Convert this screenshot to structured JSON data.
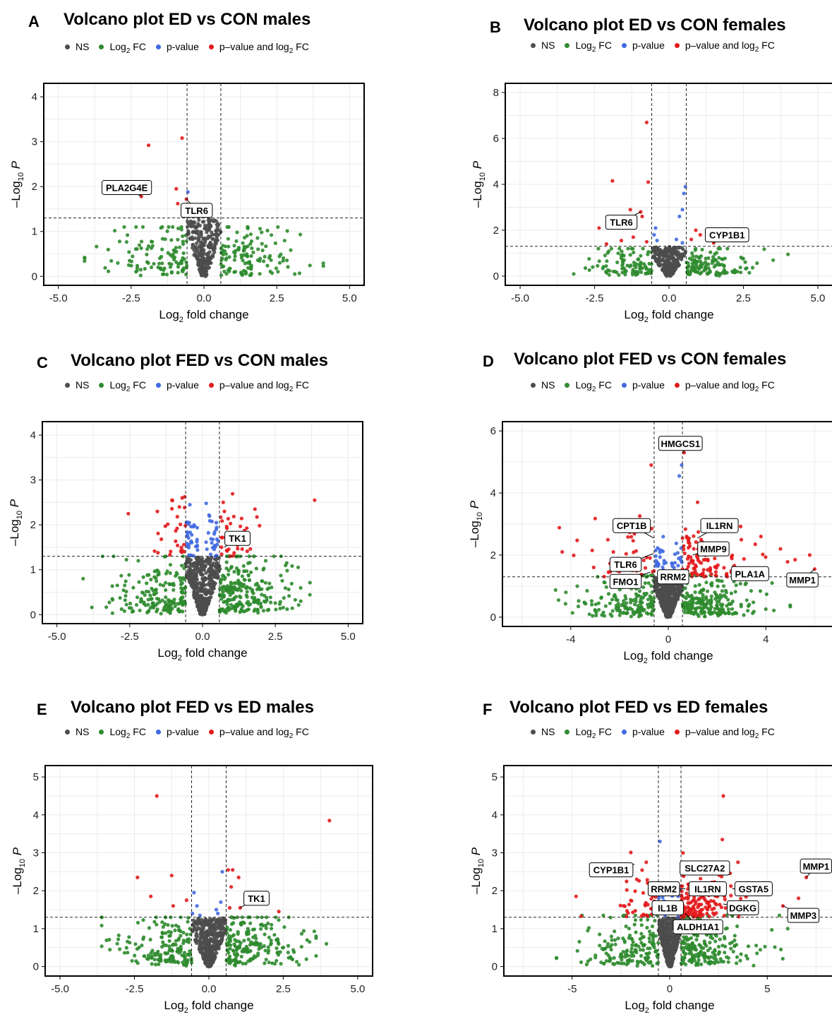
{
  "legend": {
    "ns": "NS",
    "log2fc": "Log",
    "log2fc_sub": "2",
    "log2fc_suffix": " FC",
    "pvalue": "p-value",
    "both": "p–value and log",
    "both_sub": "2",
    "both_suffix": " FC",
    "colors": {
      "ns": "#4d4d4d",
      "log2fc": "#2e8b2e",
      "pvalue": "#4169e1",
      "both": "#e31a1c"
    }
  },
  "axis_labels": {
    "x": "Log",
    "x_sub": "2",
    "x_suffix": " fold change",
    "y_prefix": "–Log",
    "y_sub": "10",
    "y_suffix": " P"
  },
  "chart_data": [
    {
      "letter": "A",
      "title": "Volcano plot ED vs CON males",
      "type": "scatter",
      "xlim": [
        -5.5,
        5.5
      ],
      "ylim": [
        -0.2,
        4.3
      ],
      "xticks": [
        -5.0,
        -2.5,
        0.0,
        2.5,
        5.0
      ],
      "xtick_labels": [
        "-5.0",
        "-2.5",
        "0.0",
        "2.5",
        "5.0"
      ],
      "yticks": [
        0,
        1,
        2,
        3,
        4
      ],
      "ytick_labels": [
        "0",
        "1",
        "2",
        "3",
        "4"
      ],
      "fc_cutoff": 0.58,
      "p_cutoff": 1.3,
      "cloud": {
        "ns_spread": 1.15,
        "fc_spread": 4.1,
        "fc_ymax": 1.1,
        "n_ns": 260,
        "n_fc": 240
      },
      "highlight_points": [
        {
          "x": -1.9,
          "y": 2.92,
          "cat": "both"
        },
        {
          "x": -0.75,
          "y": 3.08,
          "cat": "both"
        },
        {
          "x": -0.95,
          "y": 1.95,
          "cat": "both"
        },
        {
          "x": -0.9,
          "y": 1.62,
          "cat": "both"
        },
        {
          "x": -2.15,
          "y": 1.78,
          "cat": "both"
        },
        {
          "x": -0.6,
          "y": 1.72,
          "cat": "both"
        },
        {
          "x": -0.55,
          "y": 1.88,
          "cat": "pvalue"
        },
        {
          "x": -0.52,
          "y": 1.58,
          "cat": "pvalue"
        }
      ],
      "labels": [
        {
          "text": "PLA2G4E",
          "x": -2.15,
          "y": 1.78,
          "lx": -2.65,
          "ly": 1.98
        },
        {
          "text": "TLR6",
          "x": -0.6,
          "y": 1.72,
          "lx": -0.25,
          "ly": 1.47
        }
      ]
    },
    {
      "letter": "B",
      "title": "Volcano plot ED vs CON females",
      "type": "scatter",
      "xlim": [
        -5.5,
        5.5
      ],
      "ylim": [
        -0.4,
        8.4
      ],
      "xticks": [
        -5.0,
        -2.5,
        0.0,
        2.5,
        5.0
      ],
      "xtick_labels": [
        "-5.0",
        "-2.5",
        "0.0",
        "2.5",
        "5.0"
      ],
      "yticks": [
        0,
        2,
        4,
        6,
        8
      ],
      "ytick_labels": [
        "0",
        "2",
        "4",
        "6",
        "8"
      ],
      "fc_cutoff": 0.58,
      "p_cutoff": 1.3,
      "cloud": {
        "ns_spread": 1.3,
        "fc_spread": 3.2,
        "fc_ymax": 1.2,
        "n_ns": 280,
        "n_fc": 220
      },
      "highlight_points": [
        {
          "x": -0.75,
          "y": 6.7,
          "cat": "both"
        },
        {
          "x": -3.2,
          "y": 0.1,
          "cat": "log2fc"
        },
        {
          "x": -1.9,
          "y": 4.15,
          "cat": "both"
        },
        {
          "x": -0.7,
          "y": 4.1,
          "cat": "both"
        },
        {
          "x": -0.95,
          "y": 2.8,
          "cat": "both"
        },
        {
          "x": -1.3,
          "y": 2.9,
          "cat": "both"
        },
        {
          "x": -2.35,
          "y": 2.1,
          "cat": "both"
        },
        {
          "x": -0.9,
          "y": 2.6,
          "cat": "both"
        },
        {
          "x": -1.6,
          "y": 1.55,
          "cat": "both"
        },
        {
          "x": -1.2,
          "y": 1.7,
          "cat": "both"
        },
        {
          "x": -0.75,
          "y": 1.5,
          "cat": "both"
        },
        {
          "x": -2.1,
          "y": 1.4,
          "cat": "both"
        },
        {
          "x": 0.55,
          "y": 3.9,
          "cat": "pvalue"
        },
        {
          "x": 0.5,
          "y": 3.6,
          "cat": "pvalue"
        },
        {
          "x": 0.45,
          "y": 2.9,
          "cat": "pvalue"
        },
        {
          "x": 0.35,
          "y": 2.6,
          "cat": "pvalue"
        },
        {
          "x": -0.45,
          "y": 2.1,
          "cat": "pvalue"
        },
        {
          "x": -0.5,
          "y": 1.8,
          "cat": "pvalue"
        },
        {
          "x": -0.4,
          "y": 1.55,
          "cat": "pvalue"
        },
        {
          "x": 0.25,
          "y": 1.6,
          "cat": "pvalue"
        },
        {
          "x": 0.45,
          "y": 1.45,
          "cat": "pvalue"
        },
        {
          "x": 0.9,
          "y": 2.0,
          "cat": "both"
        },
        {
          "x": 0.75,
          "y": 1.6,
          "cat": "both"
        },
        {
          "x": 1.5,
          "y": 1.45,
          "cat": "both"
        },
        {
          "x": 1.05,
          "y": 1.8,
          "cat": "both"
        },
        {
          "x": 3.5,
          "y": 0.7,
          "cat": "log2fc"
        },
        {
          "x": 4.0,
          "y": 0.95,
          "cat": "log2fc"
        },
        {
          "x": 2.7,
          "y": 0.15,
          "cat": "log2fc"
        },
        {
          "x": 2.3,
          "y": 0.2,
          "cat": "log2fc"
        }
      ],
      "labels": [
        {
          "text": "TLR6",
          "x": -0.95,
          "y": 2.8,
          "lx": -1.6,
          "ly": 2.35
        },
        {
          "text": "CYP1B1",
          "x": 1.5,
          "y": 1.45,
          "lx": 1.95,
          "ly": 1.8
        }
      ]
    },
    {
      "letter": "C",
      "title": "Volcano plot FED vs CON males",
      "type": "scatter",
      "xlim": [
        -5.5,
        5.5
      ],
      "ylim": [
        -0.2,
        4.3
      ],
      "xticks": [
        -5.0,
        -2.5,
        0.0,
        2.5,
        5.0
      ],
      "xtick_labels": [
        "-5.0",
        "-2.5",
        "0.0",
        "2.5",
        "5.0"
      ],
      "yticks": [
        0,
        1,
        2,
        3,
        4
      ],
      "ytick_labels": [
        "0",
        "1",
        "2",
        "3",
        "4"
      ],
      "fc_cutoff": 0.58,
      "p_cutoff": 1.3,
      "cloud": {
        "ns_spread": 1.3,
        "fc_spread": 3.8,
        "fc_ymax": 1.3,
        "n_ns": 420,
        "n_fc": 420
      },
      "band": {
        "both_n": 60,
        "pvalue_n": 60,
        "ymax": 2.6
      },
      "highlight_points": [
        {
          "x": -2.55,
          "y": 2.25,
          "cat": "both"
        },
        {
          "x": -1.55,
          "y": 2.3,
          "cat": "both"
        },
        {
          "x": -1.05,
          "y": 2.55,
          "cat": "both"
        },
        {
          "x": -0.7,
          "y": 2.6,
          "cat": "both"
        },
        {
          "x": 3.85,
          "y": 2.55,
          "cat": "both"
        },
        {
          "x": 1.8,
          "y": 2.35,
          "cat": "both"
        },
        {
          "x": 0.75,
          "y": 2.3,
          "cat": "both"
        },
        {
          "x": 1.2,
          "y": 1.55,
          "cat": "both"
        },
        {
          "x": -4.1,
          "y": 0.8,
          "cat": "log2fc"
        },
        {
          "x": -3.05,
          "y": 1.3,
          "cat": "log2fc"
        },
        {
          "x": -3.1,
          "y": 0.35,
          "cat": "log2fc"
        },
        {
          "x": 2.0,
          "y": 0.25,
          "cat": "log2fc"
        }
      ],
      "labels": [
        {
          "text": "TK1",
          "x": 0.75,
          "y": 1.5,
          "lx": 1.2,
          "ly": 1.7
        }
      ]
    },
    {
      "letter": "D",
      "title": "Volcano plot FED vs CON females",
      "type": "scatter",
      "xlim": [
        -6.8,
        6.8
      ],
      "ylim": [
        -0.3,
        6.3
      ],
      "xticks": [
        -4,
        0,
        4
      ],
      "xtick_labels": [
        "-4",
        "0",
        "4"
      ],
      "yticks": [
        0,
        2,
        4,
        6
      ],
      "ytick_labels": [
        "0",
        "2",
        "4",
        "6"
      ],
      "fc_cutoff": 0.58,
      "p_cutoff": 1.3,
      "cloud": {
        "ns_spread": 1.4,
        "fc_spread": 5.0,
        "fc_ymax": 1.35,
        "n_ns": 420,
        "n_fc": 380
      },
      "band": {
        "both_n": 150,
        "pvalue_n": 40,
        "ymax": 2.9,
        "both_spread": 3.5
      },
      "highlight_points": [
        {
          "x": -0.7,
          "y": 4.9,
          "cat": "both"
        },
        {
          "x": 0.55,
          "y": 4.9,
          "cat": "pvalue"
        },
        {
          "x": 0.45,
          "y": 4.55,
          "cat": "pvalue"
        },
        {
          "x": 0.65,
          "y": 5.3,
          "cat": "both"
        },
        {
          "x": -4.35,
          "y": 2.1,
          "cat": "both"
        },
        {
          "x": -4.2,
          "y": 0.8,
          "cat": "log2fc"
        },
        {
          "x": -4.5,
          "y": 0.55,
          "cat": "log2fc"
        },
        {
          "x": 1.2,
          "y": 3.7,
          "cat": "both"
        },
        {
          "x": 5.2,
          "y": 1.85,
          "cat": "both"
        },
        {
          "x": 6.0,
          "y": 1.55,
          "cat": "both"
        },
        {
          "x": 5.8,
          "y": 2.0,
          "cat": "both"
        },
        {
          "x": 4.6,
          "y": 2.2,
          "cat": "both"
        },
        {
          "x": 3.8,
          "y": 2.6,
          "cat": "both"
        },
        {
          "x": -2.45,
          "y": 1.45,
          "cat": "both"
        },
        {
          "x": -2.25,
          "y": 2.1,
          "cat": "both"
        }
      ],
      "labels": [
        {
          "text": "HMGCS1",
          "x": 0.65,
          "y": 5.3,
          "lx": 0.5,
          "ly": 5.6
        },
        {
          "text": "CPT1B",
          "x": -0.6,
          "y": 2.55,
          "lx": -1.5,
          "ly": 2.95
        },
        {
          "text": "IL1RN",
          "x": 1.2,
          "y": 2.55,
          "lx": 2.1,
          "ly": 2.95
        },
        {
          "text": "MMP9",
          "x": 1.0,
          "y": 2.0,
          "lx": 1.85,
          "ly": 2.2
        },
        {
          "text": "TLR6",
          "x": -0.6,
          "y": 2.05,
          "lx": -1.75,
          "ly": 1.7
        },
        {
          "text": "FMO1",
          "x": -0.75,
          "y": 1.45,
          "lx": -1.75,
          "ly": 1.15
        },
        {
          "text": "RRM2",
          "x": 0.2,
          "y": 1.5,
          "lx": 0.2,
          "ly": 1.3
        },
        {
          "text": "PLA1A",
          "x": 2.6,
          "y": 1.65,
          "lx": 3.35,
          "ly": 1.4
        },
        {
          "text": "MMP1",
          "x": 6.0,
          "y": 1.55,
          "lx": 5.5,
          "ly": 1.2
        }
      ]
    },
    {
      "letter": "E",
      "title": "Volcano plot FED vs ED males",
      "type": "scatter",
      "xlim": [
        -5.5,
        5.5
      ],
      "ylim": [
        -0.25,
        5.3
      ],
      "xticks": [
        -5.0,
        -2.5,
        0.0,
        2.5,
        5.0
      ],
      "xtick_labels": [
        "-5.0",
        "-2.5",
        "0.0",
        "2.5",
        "5.0"
      ],
      "yticks": [
        0,
        1,
        2,
        3,
        4,
        5
      ],
      "ytick_labels": [
        "0",
        "1",
        "2",
        "3",
        "4",
        "5"
      ],
      "fc_cutoff": 0.58,
      "p_cutoff": 1.3,
      "cloud": {
        "ns_spread": 1.3,
        "fc_spread": 3.6,
        "fc_ymax": 1.3,
        "n_ns": 420,
        "n_fc": 360
      },
      "highlight_points": [
        {
          "x": -1.75,
          "y": 4.5,
          "cat": "both"
        },
        {
          "x": 4.05,
          "y": 3.85,
          "cat": "both"
        },
        {
          "x": -2.4,
          "y": 2.35,
          "cat": "both"
        },
        {
          "x": -1.25,
          "y": 2.4,
          "cat": "both"
        },
        {
          "x": -1.95,
          "y": 1.85,
          "cat": "both"
        },
        {
          "x": -1.2,
          "y": 1.6,
          "cat": "both"
        },
        {
          "x": -0.75,
          "y": 1.75,
          "cat": "both"
        },
        {
          "x": 0.65,
          "y": 2.55,
          "cat": "both"
        },
        {
          "x": 0.8,
          "y": 2.55,
          "cat": "both"
        },
        {
          "x": 1.0,
          "y": 2.35,
          "cat": "both"
        },
        {
          "x": 0.75,
          "y": 2.1,
          "cat": "both"
        },
        {
          "x": 0.7,
          "y": 1.55,
          "cat": "both"
        },
        {
          "x": 1.05,
          "y": 1.55,
          "cat": "both"
        },
        {
          "x": 1.5,
          "y": 1.75,
          "cat": "both"
        },
        {
          "x": 2.35,
          "y": 1.45,
          "cat": "both"
        },
        {
          "x": -0.5,
          "y": 1.95,
          "cat": "pvalue"
        },
        {
          "x": -0.4,
          "y": 1.6,
          "cat": "pvalue"
        },
        {
          "x": -0.55,
          "y": 1.4,
          "cat": "pvalue"
        },
        {
          "x": 0.45,
          "y": 2.5,
          "cat": "pvalue"
        },
        {
          "x": 0.4,
          "y": 1.7,
          "cat": "pvalue"
        },
        {
          "x": 0.25,
          "y": 1.5,
          "cat": "pvalue"
        },
        {
          "x": -0.3,
          "y": 1.35,
          "cat": "pvalue"
        },
        {
          "x": 0.3,
          "y": 1.4,
          "cat": "pvalue"
        },
        {
          "x": 3.3,
          "y": 0.7,
          "cat": "log2fc"
        },
        {
          "x": 3.6,
          "y": 0.75,
          "cat": "log2fc"
        },
        {
          "x": 3.95,
          "y": 0.6,
          "cat": "log2fc"
        },
        {
          "x": 2.5,
          "y": 0.5,
          "cat": "log2fc"
        }
      ],
      "labels": [
        {
          "text": "TK1",
          "x": 1.05,
          "y": 1.55,
          "lx": 1.6,
          "ly": 1.8
        }
      ]
    },
    {
      "letter": "F",
      "title": "Volcano plot FED vs ED females",
      "type": "scatter",
      "xlim": [
        -8.5,
        8.5
      ],
      "ylim": [
        -0.25,
        5.3
      ],
      "xticks": [
        -5,
        0,
        5
      ],
      "xtick_labels": [
        "-5",
        "0",
        "5"
      ],
      "yticks": [
        0,
        1,
        2,
        3,
        4,
        5
      ],
      "ytick_labels": [
        "0",
        "1",
        "2",
        "3",
        "4",
        "5"
      ],
      "fc_cutoff": 0.58,
      "p_cutoff": 1.3,
      "cloud": {
        "ns_spread": 1.6,
        "fc_spread": 5.8,
        "fc_ymax": 1.35,
        "n_ns": 420,
        "n_fc": 380
      },
      "band": {
        "both_n": 200,
        "pvalue_n": 25,
        "ymax": 2.4,
        "both_spread": 3.5
      },
      "highlight_points": [
        {
          "x": 2.75,
          "y": 4.5,
          "cat": "both"
        },
        {
          "x": -0.5,
          "y": 3.3,
          "cat": "pvalue"
        },
        {
          "x": -4.8,
          "y": 1.85,
          "cat": "both"
        },
        {
          "x": -1.2,
          "y": 2.75,
          "cat": "both"
        },
        {
          "x": 2.7,
          "y": 3.35,
          "cat": "both"
        },
        {
          "x": 7.0,
          "y": 2.35,
          "cat": "both"
        },
        {
          "x": 5.8,
          "y": 1.6,
          "cat": "both"
        },
        {
          "x": 6.6,
          "y": 1.8,
          "cat": "both"
        },
        {
          "x": 3.5,
          "y": 2.75,
          "cat": "both"
        },
        {
          "x": -3.4,
          "y": 0.45,
          "cat": "log2fc"
        },
        {
          "x": -4.2,
          "y": 0.95,
          "cat": "log2fc"
        },
        {
          "x": 5.7,
          "y": 0.45,
          "cat": "log2fc"
        },
        {
          "x": 6.05,
          "y": 1.0,
          "cat": "log2fc"
        }
      ],
      "labels": [
        {
          "text": "CYP1B1",
          "x": -1.8,
          "y": 2.7,
          "lx": -3.0,
          "ly": 2.55
        },
        {
          "text": "SLC27A2",
          "x": 2.7,
          "y": 2.7,
          "lx": 1.8,
          "ly": 2.6
        },
        {
          "text": "MMP1",
          "x": 7.0,
          "y": 2.35,
          "lx": 7.5,
          "ly": 2.65
        },
        {
          "text": "RRM2",
          "x": 0.8,
          "y": 2.05,
          "lx": -0.3,
          "ly": 2.05
        },
        {
          "text": "IL1RN",
          "x": 1.2,
          "y": 2.0,
          "lx": 1.95,
          "ly": 2.05
        },
        {
          "text": "GSTA5",
          "x": 3.2,
          "y": 2.05,
          "lx": 4.3,
          "ly": 2.05
        },
        {
          "text": "IL1B",
          "x": 0.15,
          "y": 1.55,
          "lx": -0.1,
          "ly": 1.55
        },
        {
          "text": "DGKG",
          "x": 2.75,
          "y": 1.65,
          "lx": 3.75,
          "ly": 1.55
        },
        {
          "text": "MMP3",
          "x": 5.8,
          "y": 1.6,
          "lx": 6.85,
          "ly": 1.35
        },
        {
          "text": "ALDH1A1",
          "x": 0.8,
          "y": 1.4,
          "lx": 1.45,
          "ly": 1.05
        }
      ]
    }
  ]
}
